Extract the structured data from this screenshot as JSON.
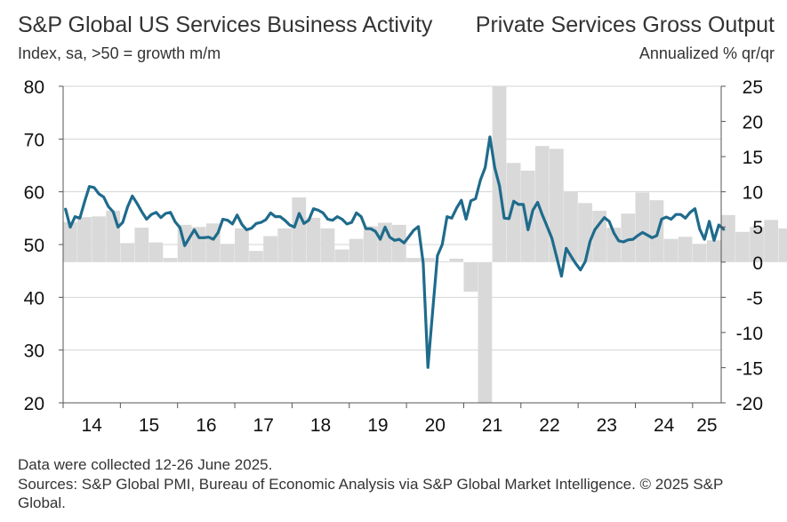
{
  "chart_data": {
    "type": "bar+line",
    "title_left": "S&P Global US Services Business Activity",
    "subtitle_left": "Index, sa, >50 = growth m/m",
    "title_right": "Private Services Gross Output",
    "subtitle_right": "Annualized % qr/qr",
    "left_axis": {
      "ylim": [
        20,
        80
      ],
      "ticks": [
        "80",
        "70",
        "60",
        "50",
        "40",
        "30",
        "20"
      ]
    },
    "right_axis": {
      "ylim": [
        -20,
        25
      ],
      "ticks": [
        "25",
        "20",
        "15",
        "10",
        "5",
        "0",
        "-5",
        "-10",
        "-15",
        "-20"
      ]
    },
    "x_ticks": [
      "14",
      "15",
      "16",
      "17",
      "18",
      "19",
      "20",
      "21",
      "22",
      "23",
      "24",
      "25"
    ],
    "bar_series": {
      "name": "Private Services Gross Output (annualized % qr/qr, right axis)",
      "start": "2014Q1",
      "values": [
        5.7,
        6.4,
        6.5,
        7.3,
        2.7,
        4.9,
        2.8,
        0.6,
        5.3,
        5.0,
        5.5,
        2.6,
        4.8,
        1.6,
        3.7,
        4.8,
        9.2,
        6.3,
        4.8,
        1.8,
        3.3,
        5.1,
        5.6,
        5.3,
        0.6,
        0.6,
        0.1,
        0.5,
        -4.2,
        -20.0,
        25.0,
        14.1,
        13.0,
        16.5,
        16.1,
        10.0,
        8.4,
        7.3,
        4.9,
        6.9,
        9.9,
        8.8,
        3.3,
        3.6,
        2.6,
        3.1,
        6.7,
        4.3,
        5.0,
        6.0,
        4.8,
        3.6,
        0.3
      ]
    },
    "line_series": {
      "name": "S&P Global US Services Business Activity (index, sa, left axis)",
      "start": "2014-01",
      "values": [
        56.7,
        53.3,
        55.3,
        55.0,
        58.1,
        61.0,
        60.8,
        59.6,
        59.0,
        57.2,
        56.2,
        53.3,
        54.2,
        57.1,
        59.2,
        57.8,
        56.2,
        54.8,
        55.7,
        56.1,
        55.1,
        55.9,
        56.1,
        54.3,
        53.2,
        49.8,
        51.3,
        52.8,
        51.3,
        51.3,
        51.4,
        51.0,
        52.3,
        54.8,
        54.6,
        53.9,
        55.6,
        53.8,
        52.8,
        53.1,
        54.0,
        54.2,
        54.7,
        56.0,
        55.3,
        55.3,
        54.6,
        53.7,
        53.3,
        55.9,
        54.0,
        54.6,
        56.8,
        56.5,
        56.0,
        54.8,
        54.6,
        55.3,
        54.8,
        53.9,
        54.2,
        56.0,
        55.3,
        53.0,
        53.0,
        52.5,
        51.0,
        53.3,
        51.4,
        50.8,
        51.0,
        50.3,
        51.5,
        52.7,
        53.4,
        46.5,
        26.7,
        37.5,
        47.9,
        50.0,
        55.3,
        55.0,
        56.9,
        58.4,
        54.8,
        58.3,
        58.7,
        62.2,
        64.6,
        70.4,
        64.6,
        61.1,
        55.0,
        54.9,
        58.2,
        57.6,
        57.6,
        52.8,
        56.5,
        58.0,
        55.6,
        53.4,
        51.2,
        47.6,
        44.0,
        49.3,
        47.8,
        46.4,
        45.2,
        46.8,
        50.6,
        52.8,
        54.0,
        55.1,
        54.4,
        52.2,
        50.7,
        50.5,
        50.9,
        51.0,
        51.7,
        52.3,
        51.8,
        51.3,
        51.7,
        54.8,
        55.2,
        54.8,
        55.7,
        55.7,
        55.0,
        56.1,
        56.8,
        52.9,
        51.0,
        54.4,
        50.8,
        53.7,
        52.9
      ]
    }
  },
  "footnotes": {
    "line1": "Data were collected 12-26 June 2025.",
    "line2": "Sources: S&P Global PMI, Bureau of Economic Analysis via S&P Global Market Intelligence. © 2025 S&P Global."
  },
  "colors": {
    "bars": "#d9d9d9",
    "line": "#1f6b8c",
    "grid": "#d4d4d4",
    "axis": "#555555"
  }
}
